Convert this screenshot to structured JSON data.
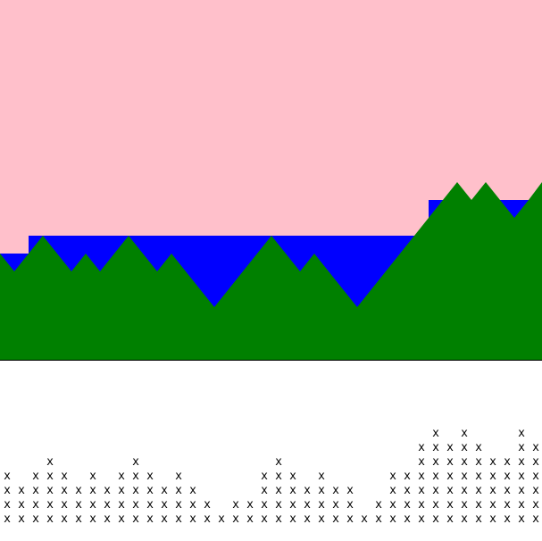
{
  "colors": {
    "sky": "#ffc0cb",
    "water": "#0000ff",
    "terrain": "#008000",
    "background": "#ffffff",
    "marker": "#000000"
  },
  "terrain_heights": [
    6,
    5,
    6,
    7,
    6,
    5,
    6,
    5,
    6,
    7,
    6,
    5,
    6,
    5,
    4,
    3,
    4,
    5,
    6,
    7,
    6,
    5,
    6,
    5,
    4,
    3,
    4,
    5,
    6,
    7,
    8,
    9,
    10,
    9,
    10,
    9,
    8,
    9,
    10,
    11
  ],
  "water_level": [
    6,
    6,
    7,
    7,
    7,
    7,
    7,
    7,
    7,
    7,
    7,
    7,
    7,
    7,
    7,
    7,
    7,
    7,
    7,
    7,
    7,
    7,
    7,
    7,
    7,
    7,
    7,
    7,
    7,
    7,
    9,
    9,
    9,
    9,
    9,
    9,
    9,
    9,
    9,
    9
  ],
  "marker_glyph": "x",
  "marker_rows": [
    "..............................x.x...x",
    ".............................xxxxx..xx",
    "...x.....x.........x.........xxxxxxxxx",
    "x.xxx.x.xxx.x.....xxx.x....xxxxxxxxxxx",
    "xxxxxxxxxxxxxx....xxxxxxx..xxxxxxxxxxx",
    "xxxxxxxxxxxxxxx.xxxxxxxxx.xxxxxxxxxxxx",
    "xxxxxxxxxxxxxxxxxxxxxxxxxxxxxxxxxxxxxx"
  ]
}
